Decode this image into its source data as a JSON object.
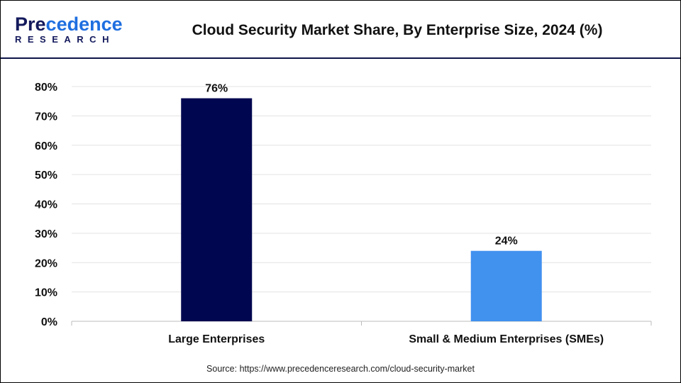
{
  "brand": {
    "logo_line1": "Precedence",
    "logo_line2": "RESEARCH"
  },
  "title": "Cloud Security Market Share, By Enterprise Size, 2024 (%)",
  "source": "Source: https://www.precedenceresearch.com/cloud-security-market",
  "chart_data": {
    "type": "bar",
    "title": "Cloud Security Market Share, By Enterprise Size, 2024 (%)",
    "categories": [
      "Large Enterprises",
      "Small & Medium Enterprises (SMEs)"
    ],
    "values": [
      76,
      24
    ],
    "data_labels": [
      "76%",
      "24%"
    ],
    "colors": [
      "#00064f",
      "#4191ef"
    ],
    "ylim": [
      0,
      80
    ],
    "yticks": [
      "0%",
      "10%",
      "20%",
      "30%",
      "40%",
      "50%",
      "60%",
      "70%",
      "80%"
    ],
    "grid": true,
    "xlabel": "",
    "ylabel": ""
  }
}
